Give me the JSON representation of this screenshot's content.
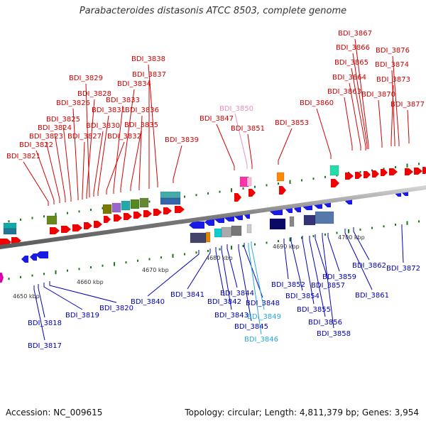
{
  "title": "Parabacteroides distasonis ATCC 8503, complete genome",
  "footer": {
    "accession": "Accession: NC_009615",
    "summary": "Topology: circular; Length: 4,811,379 bp; Genes: 3,954"
  },
  "colors": {
    "top_strand_label": "#d40000",
    "bottom_strand_label": "#0000bb",
    "highlight_top": "#e890c0",
    "highlight_bottom": "#22aadd",
    "backbone": "#888888",
    "tick": "#1a7a1a"
  },
  "scale_ticks": [
    "4650 kbp",
    "4660 kbp",
    "4670 kbp",
    "4680 kbp",
    "4690 kbp",
    "4700 kbp"
  ],
  "top_labels": [
    "BDI_3821",
    "BDI_3822",
    "BDI_3823",
    "BDI_3824",
    "BDI_3825",
    "BDI_3826",
    "BDI_3827",
    "BDI_3828",
    "BDI_3829",
    "BDI_3830",
    "BDI_3831",
    "BDI_3832",
    "BDI_3833",
    "BDI_3834",
    "BDI_3835",
    "BDI_3836",
    "BDI_3837",
    "BDI_3838",
    "BDI_3839",
    "BDI_3847",
    "BDI_3850",
    "BDI_3851",
    "BDI_3853",
    "BDI_3860",
    "BDI_3863",
    "BDI_3864",
    "BDI_3865",
    "BDI_3866",
    "BDI_3867",
    "BDI_3870",
    "BDI_3873",
    "BDI_3874",
    "BDI_3876",
    "BDI_3877"
  ],
  "bottom_labels": [
    "BDI_3817",
    "BDI_3818",
    "BDI_3819",
    "BDI_3820",
    "BDI_3840",
    "BDI_3841",
    "BDI_3842",
    "BDI_3843",
    "BDI_3844",
    "BDI_3845",
    "BDI_3846",
    "BDI_3848",
    "BDI_3849",
    "BDI_3852",
    "BDI_3854",
    "BDI_3855",
    "BDI_3856",
    "BDI_3857",
    "BDI_3858",
    "BDI_3859",
    "BDI_3861",
    "BDI_3862",
    "BDI_3872"
  ]
}
